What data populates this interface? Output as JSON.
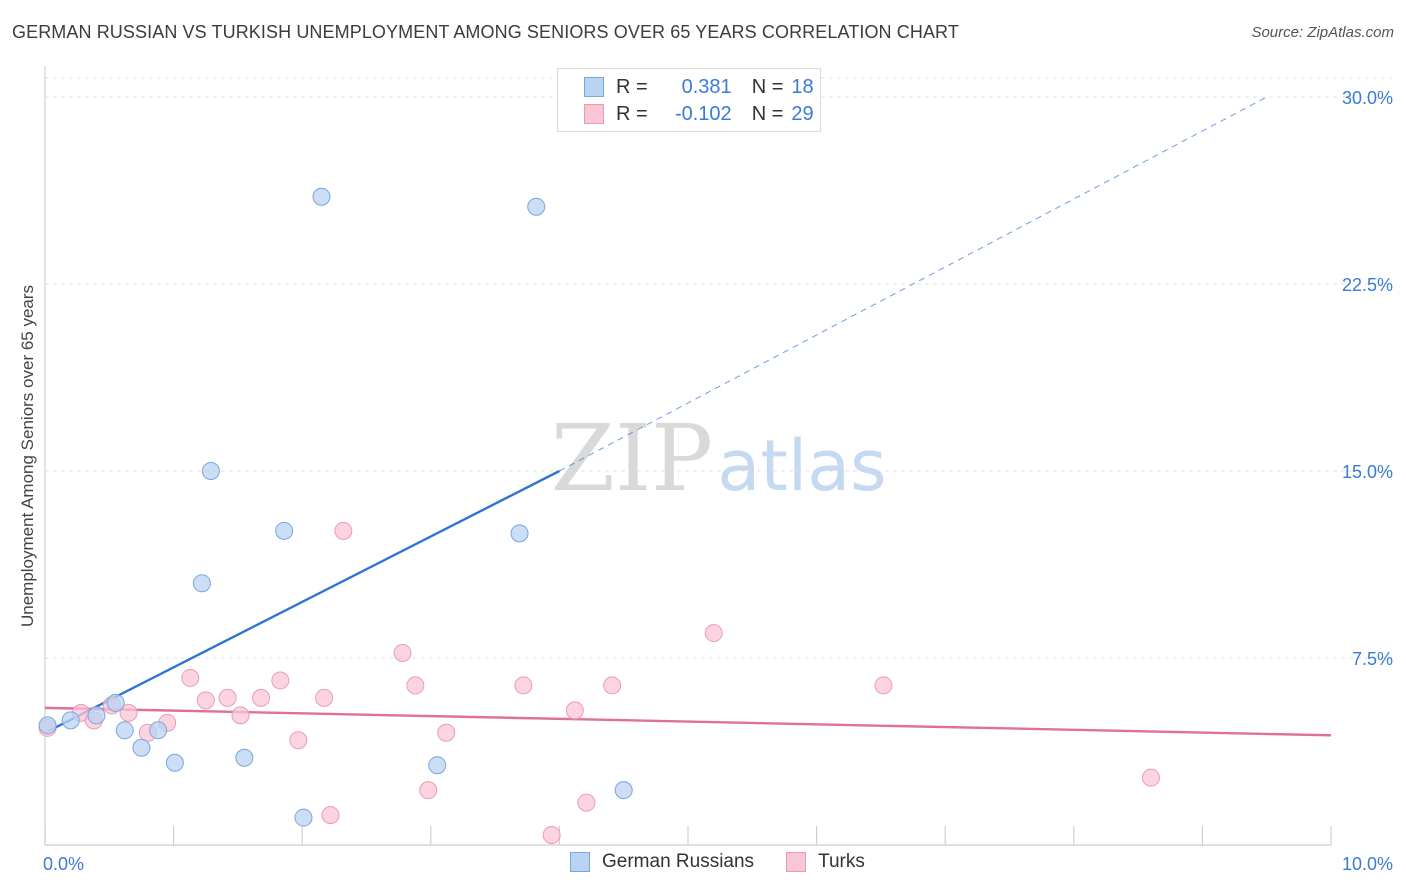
{
  "header": {
    "title": "GERMAN RUSSIAN VS TURKISH UNEMPLOYMENT AMONG SENIORS OVER 65 YEARS CORRELATION CHART",
    "source": "Source: ZipAtlas.com"
  },
  "legend": {
    "rows": [
      {
        "r_label": "R =",
        "r_value": "0.381",
        "n_label": "N =",
        "n_value": "18"
      },
      {
        "r_label": "R =",
        "r_value": "-0.102",
        "n_label": "N =",
        "n_value": "29"
      }
    ]
  },
  "bottom_legend": {
    "series1": "German Russians",
    "series2": "Turks"
  },
  "watermark": {
    "zip": "ZIP",
    "atlas": "atlas"
  },
  "colors": {
    "blue_fill": "#b9d3f3",
    "blue_stroke": "#7aa6dc",
    "blue_line": "#2f74d0",
    "pink_fill": "#f9c6d6",
    "pink_stroke": "#eb9bb6",
    "pink_line": "#e0709a",
    "tick_text": "#3a7bd5"
  },
  "chart_data": {
    "type": "scatter",
    "title": "GERMAN RUSSIAN VS TURKISH UNEMPLOYMENT AMONG SENIORS OVER 65 YEARS CORRELATION CHART",
    "xlabel": "",
    "ylabel": "Unemployment Among Seniors over 65 years",
    "xlim": [
      0,
      10
    ],
    "ylim": [
      0,
      30
    ],
    "x_tick_labels": [
      "0.0%",
      "10.0%"
    ],
    "y_ticks": [
      7.5,
      15,
      22.5,
      30
    ],
    "y_tick_labels": [
      "7.5%",
      "15.0%",
      "22.5%",
      "30.0%"
    ],
    "grid": true,
    "series": [
      {
        "name": "German Russians",
        "r": 0.381,
        "n": 18,
        "points": [
          [
            0.02,
            4.8
          ],
          [
            0.2,
            5.0
          ],
          [
            0.55,
            5.7
          ],
          [
            0.62,
            4.6
          ],
          [
            0.75,
            3.9
          ],
          [
            0.88,
            4.6
          ],
          [
            1.01,
            3.3
          ],
          [
            1.22,
            10.5
          ],
          [
            1.29,
            15.0
          ],
          [
            1.55,
            3.5
          ],
          [
            1.86,
            12.6
          ],
          [
            2.01,
            1.1
          ],
          [
            2.15,
            26.0
          ],
          [
            3.05,
            3.2
          ],
          [
            3.69,
            12.5
          ],
          [
            3.82,
            25.6
          ],
          [
            4.5,
            2.2
          ],
          [
            0.4,
            5.2
          ]
        ],
        "trend_solid": [
          [
            0.0,
            4.5
          ],
          [
            4.0,
            15.0
          ]
        ],
        "trend_dashed": [
          [
            4.0,
            15.0
          ],
          [
            9.5,
            30.0
          ]
        ]
      },
      {
        "name": "Turks",
        "r": -0.102,
        "n": 29,
        "points": [
          [
            0.02,
            4.7
          ],
          [
            0.28,
            5.3
          ],
          [
            0.38,
            5.0
          ],
          [
            0.52,
            5.6
          ],
          [
            0.65,
            5.3
          ],
          [
            0.8,
            4.5
          ],
          [
            0.95,
            4.9
          ],
          [
            1.13,
            6.7
          ],
          [
            1.25,
            5.8
          ],
          [
            1.42,
            5.9
          ],
          [
            1.52,
            5.2
          ],
          [
            1.68,
            5.9
          ],
          [
            1.83,
            6.6
          ],
          [
            1.97,
            4.2
          ],
          [
            2.17,
            5.9
          ],
          [
            2.22,
            1.2
          ],
          [
            2.32,
            12.6
          ],
          [
            2.78,
            7.7
          ],
          [
            2.88,
            6.4
          ],
          [
            2.98,
            2.2
          ],
          [
            3.12,
            4.5
          ],
          [
            3.72,
            6.4
          ],
          [
            3.94,
            0.4
          ],
          [
            4.12,
            5.4
          ],
          [
            4.21,
            1.7
          ],
          [
            4.41,
            6.4
          ],
          [
            5.2,
            8.5
          ],
          [
            6.52,
            6.4
          ],
          [
            8.6,
            2.7
          ]
        ],
        "trend_solid": [
          [
            0.0,
            5.5
          ],
          [
            10.0,
            4.4
          ]
        ]
      }
    ]
  }
}
